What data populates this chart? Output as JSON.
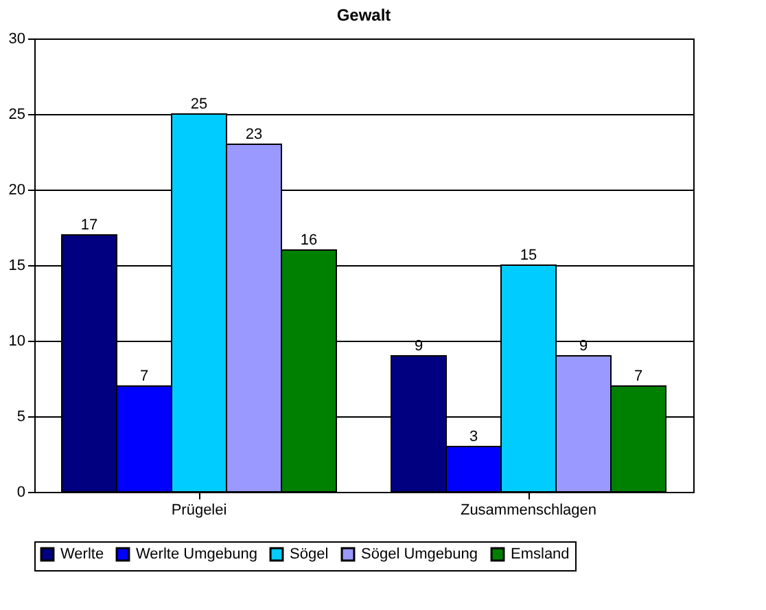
{
  "chart_data": {
    "type": "bar",
    "title": "Gewalt",
    "categories": [
      "Prügelei",
      "Zusammenschlagen"
    ],
    "series": [
      {
        "name": "Werlte",
        "color": "#000080",
        "values": [
          17,
          9
        ]
      },
      {
        "name": "Werlte Umgebung",
        "color": "#0000ff",
        "values": [
          7,
          3
        ]
      },
      {
        "name": "Sögel",
        "color": "#00ccff",
        "values": [
          25,
          15
        ]
      },
      {
        "name": "Sögel Umgebung",
        "color": "#9999ff",
        "values": [
          23,
          9
        ]
      },
      {
        "name": "Emsland",
        "color": "#008000",
        "values": [
          16,
          7
        ]
      }
    ],
    "ylim": [
      0,
      30
    ],
    "yticks": [
      0,
      5,
      10,
      15,
      20,
      25,
      30
    ],
    "grid": "y",
    "legend": "bottom",
    "data_labels": true
  }
}
